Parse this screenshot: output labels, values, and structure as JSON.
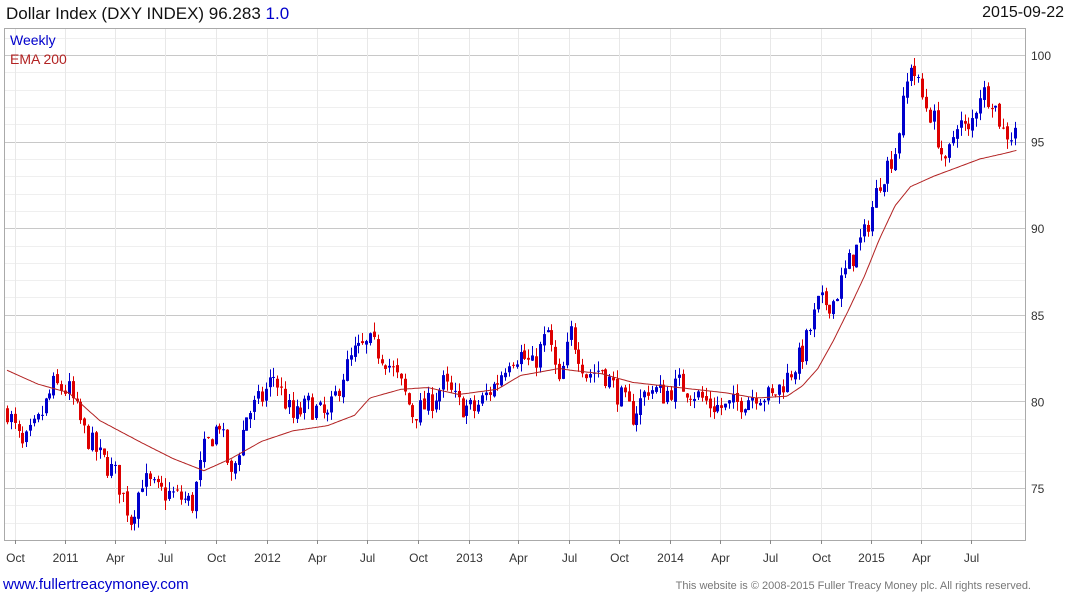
{
  "header": {
    "title": "Dollar Index (DXY INDEX) 96.283",
    "change": "1.0",
    "date": "2015-09-22"
  },
  "legend": {
    "weekly": "Weekly",
    "ema": "EMA 200"
  },
  "footer": {
    "link": "www.fullertreacymoney.com",
    "copyright": "This website is © 2008-2015 Fuller Treacy Money plc. All rights reserved."
  },
  "colors": {
    "up": "#0000cc",
    "down": "#dd0000",
    "ema": "#b22222",
    "grid": "#dddddd"
  },
  "chart_data": {
    "type": "candlestick",
    "title": "Dollar Index (DXY INDEX)",
    "frequency": "Weekly",
    "ylim": [
      72,
      101.5
    ],
    "y_ticks": [
      75,
      80,
      85,
      90,
      95,
      100
    ],
    "x_ticks": [
      "Oct",
      "2011",
      "Apr",
      "Jul",
      "Oct",
      "2012",
      "Apr",
      "Jul",
      "Oct",
      "2013",
      "Apr",
      "Jul",
      "Oct",
      "2014",
      "Apr",
      "Jul",
      "Oct",
      "2015",
      "Apr",
      "Jul"
    ],
    "x_range": [
      "2010-09-17",
      "2015-09-22"
    ],
    "grid": true,
    "series": [
      {
        "name": "Weekly",
        "kind": "close",
        "points": [
          [
            "2010-09-17",
            79.5
          ],
          [
            "2010-10-15",
            77.3
          ],
          [
            "2010-11-12",
            78.8
          ],
          [
            "2010-12-10",
            80.9
          ],
          [
            "2011-01-07",
            80.6
          ],
          [
            "2011-02-04",
            78.2
          ],
          [
            "2011-03-04",
            76.8
          ],
          [
            "2011-04-01",
            75.8
          ],
          [
            "2011-04-29",
            73.2
          ],
          [
            "2011-05-20",
            75.5
          ],
          [
            "2011-06-17",
            74.8
          ],
          [
            "2011-07-15",
            74.6
          ],
          [
            "2011-08-19",
            74.1
          ],
          [
            "2011-09-09",
            77.2
          ],
          [
            "2011-10-07",
            78.8
          ],
          [
            "2011-10-28",
            75.5
          ],
          [
            "2011-11-25",
            79.2
          ],
          [
            "2011-12-23",
            80.2
          ],
          [
            "2012-01-13",
            81.5
          ],
          [
            "2012-02-17",
            79.0
          ],
          [
            "2012-03-16",
            79.8
          ],
          [
            "2012-04-20",
            79.0
          ],
          [
            "2012-05-18",
            81.6
          ],
          [
            "2012-06-08",
            82.8
          ],
          [
            "2012-07-06",
            83.3
          ],
          [
            "2012-08-03",
            82.5
          ],
          [
            "2012-08-31",
            80.9
          ],
          [
            "2012-09-21",
            79.3
          ],
          [
            "2012-10-19",
            79.8
          ],
          [
            "2012-11-16",
            81.0
          ],
          [
            "2012-12-14",
            79.8
          ],
          [
            "2013-01-11",
            79.5
          ],
          [
            "2013-02-22",
            81.2
          ],
          [
            "2013-03-15",
            82.6
          ],
          [
            "2013-04-05",
            82.7
          ],
          [
            "2013-04-26",
            82.0
          ],
          [
            "2013-05-24",
            84.0
          ],
          [
            "2013-06-14",
            80.8
          ],
          [
            "2013-07-05",
            84.0
          ],
          [
            "2013-08-02",
            81.6
          ],
          [
            "2013-08-30",
            81.9
          ],
          [
            "2013-09-27",
            80.5
          ],
          [
            "2013-10-25",
            79.2
          ],
          [
            "2013-11-22",
            80.8
          ],
          [
            "2013-12-20",
            80.4
          ],
          [
            "2014-01-17",
            81.0
          ],
          [
            "2014-02-14",
            80.5
          ],
          [
            "2014-03-14",
            79.8
          ],
          [
            "2014-04-11",
            79.6
          ],
          [
            "2014-05-09",
            80.0
          ],
          [
            "2014-06-06",
            80.5
          ],
          [
            "2014-07-04",
            80.2
          ],
          [
            "2014-08-01",
            81.4
          ],
          [
            "2014-08-29",
            82.8
          ],
          [
            "2014-09-26",
            85.6
          ],
          [
            "2014-10-24",
            85.8
          ],
          [
            "2014-11-21",
            88.0
          ],
          [
            "2014-12-19",
            89.6
          ],
          [
            "2015-01-16",
            92.8
          ],
          [
            "2015-02-13",
            94.5
          ],
          [
            "2015-03-13",
            99.6
          ],
          [
            "2015-04-03",
            97.5
          ],
          [
            "2015-04-24",
            96.2
          ],
          [
            "2015-05-15",
            93.4
          ],
          [
            "2015-06-05",
            96.3
          ],
          [
            "2015-06-26",
            95.4
          ],
          [
            "2015-07-17",
            97.9
          ],
          [
            "2015-08-07",
            97.6
          ],
          [
            "2015-08-28",
            95.6
          ],
          [
            "2015-09-11",
            95.4
          ],
          [
            "2015-09-22",
            96.3
          ]
        ]
      },
      {
        "name": "EMA 200",
        "kind": "line",
        "points": [
          [
            "2010-09-17",
            81.8
          ],
          [
            "2010-11-12",
            81.0
          ],
          [
            "2011-01-07",
            80.5
          ],
          [
            "2011-03-04",
            78.9
          ],
          [
            "2011-05-20",
            77.6
          ],
          [
            "2011-07-15",
            76.7
          ],
          [
            "2011-09-09",
            76.0
          ],
          [
            "2011-10-28",
            76.7
          ],
          [
            "2011-12-23",
            77.7
          ],
          [
            "2012-02-17",
            78.3
          ],
          [
            "2012-04-20",
            78.6
          ],
          [
            "2012-06-08",
            79.2
          ],
          [
            "2012-07-06",
            80.2
          ],
          [
            "2012-08-31",
            80.7
          ],
          [
            "2012-10-19",
            80.8
          ],
          [
            "2012-12-14",
            80.4
          ],
          [
            "2013-02-22",
            80.7
          ],
          [
            "2013-04-05",
            81.5
          ],
          [
            "2013-06-14",
            81.9
          ],
          [
            "2013-07-05",
            81.8
          ],
          [
            "2013-08-30",
            81.6
          ],
          [
            "2013-10-25",
            81.1
          ],
          [
            "2013-12-20",
            80.9
          ],
          [
            "2014-02-14",
            80.7
          ],
          [
            "2014-04-11",
            80.5
          ],
          [
            "2014-06-06",
            80.2
          ],
          [
            "2014-08-01",
            80.3
          ],
          [
            "2014-08-29",
            80.9
          ],
          [
            "2014-09-26",
            81.9
          ],
          [
            "2014-10-24",
            83.5
          ],
          [
            "2014-11-21",
            85.3
          ],
          [
            "2014-12-19",
            87.2
          ],
          [
            "2015-01-16",
            89.4
          ],
          [
            "2015-02-13",
            91.3
          ],
          [
            "2015-03-13",
            92.4
          ],
          [
            "2015-04-24",
            93.0
          ],
          [
            "2015-06-05",
            93.5
          ],
          [
            "2015-07-17",
            94.0
          ],
          [
            "2015-08-28",
            94.3
          ],
          [
            "2015-09-22",
            94.5
          ]
        ]
      }
    ]
  }
}
